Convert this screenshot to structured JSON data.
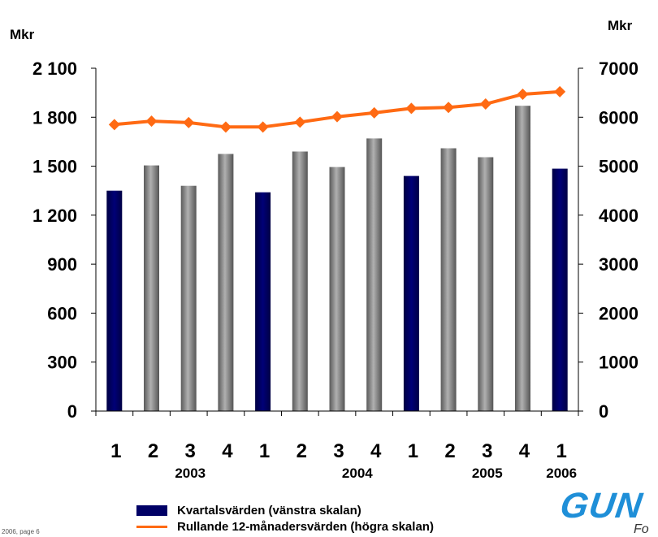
{
  "header": {
    "left_unit": "Mkr",
    "right_unit": "Mkr"
  },
  "legend": {
    "bar_label": "Kvartalsvärden (vänstra skalan)",
    "line_label": "Rullande 12-månadersvärden (högra skalan)"
  },
  "footer": {
    "text": "2006, page 6"
  },
  "logo": {
    "text": "GUN",
    "subtext": "Fo"
  },
  "colors": {
    "bar_q1": "#000066",
    "bar_other": "#808080",
    "line": "#ff6a13"
  },
  "chart_data": {
    "type": "bar",
    "categories": [
      "1",
      "2",
      "3",
      "4",
      "1",
      "2",
      "3",
      "4",
      "1",
      "2",
      "3",
      "4",
      "1"
    ],
    "year_labels": [
      {
        "label": "2003",
        "category_index": 2
      },
      {
        "label": "2004",
        "category_index": 6.5
      },
      {
        "label": "2005",
        "category_index": 10
      },
      {
        "label": "2006",
        "category_index": 12
      }
    ],
    "series": [
      {
        "values": [
          1350,
          1505,
          1380,
          1575,
          1340,
          1590,
          1495,
          1670,
          1440,
          1610,
          1555,
          1870,
          1485
        ],
        "axis": "left"
      },
      {
        "type": "line",
        "values": [
          5850,
          5920,
          5890,
          5800,
          5800,
          5900,
          6010,
          6090,
          6180,
          6200,
          6270,
          6470,
          6520
        ],
        "axis": "right"
      }
    ],
    "y_left": {
      "ylim": [
        0,
        2100
      ],
      "ticks": [
        0,
        300,
        600,
        900,
        1200,
        1500,
        1800,
        2100
      ],
      "tick_labels": [
        "0",
        "300",
        "600",
        "900",
        "1 200",
        "1 500",
        "1 800",
        "2 100"
      ]
    },
    "y_right": {
      "ylim": [
        0,
        7000
      ],
      "ticks": [
        0,
        1000,
        2000,
        3000,
        4000,
        5000,
        6000,
        7000
      ],
      "tick_labels": [
        "0",
        "1000",
        "2000",
        "3000",
        "4000",
        "5000",
        "6000",
        "7000"
      ]
    },
    "grid": false,
    "legend_position": "bottom"
  }
}
